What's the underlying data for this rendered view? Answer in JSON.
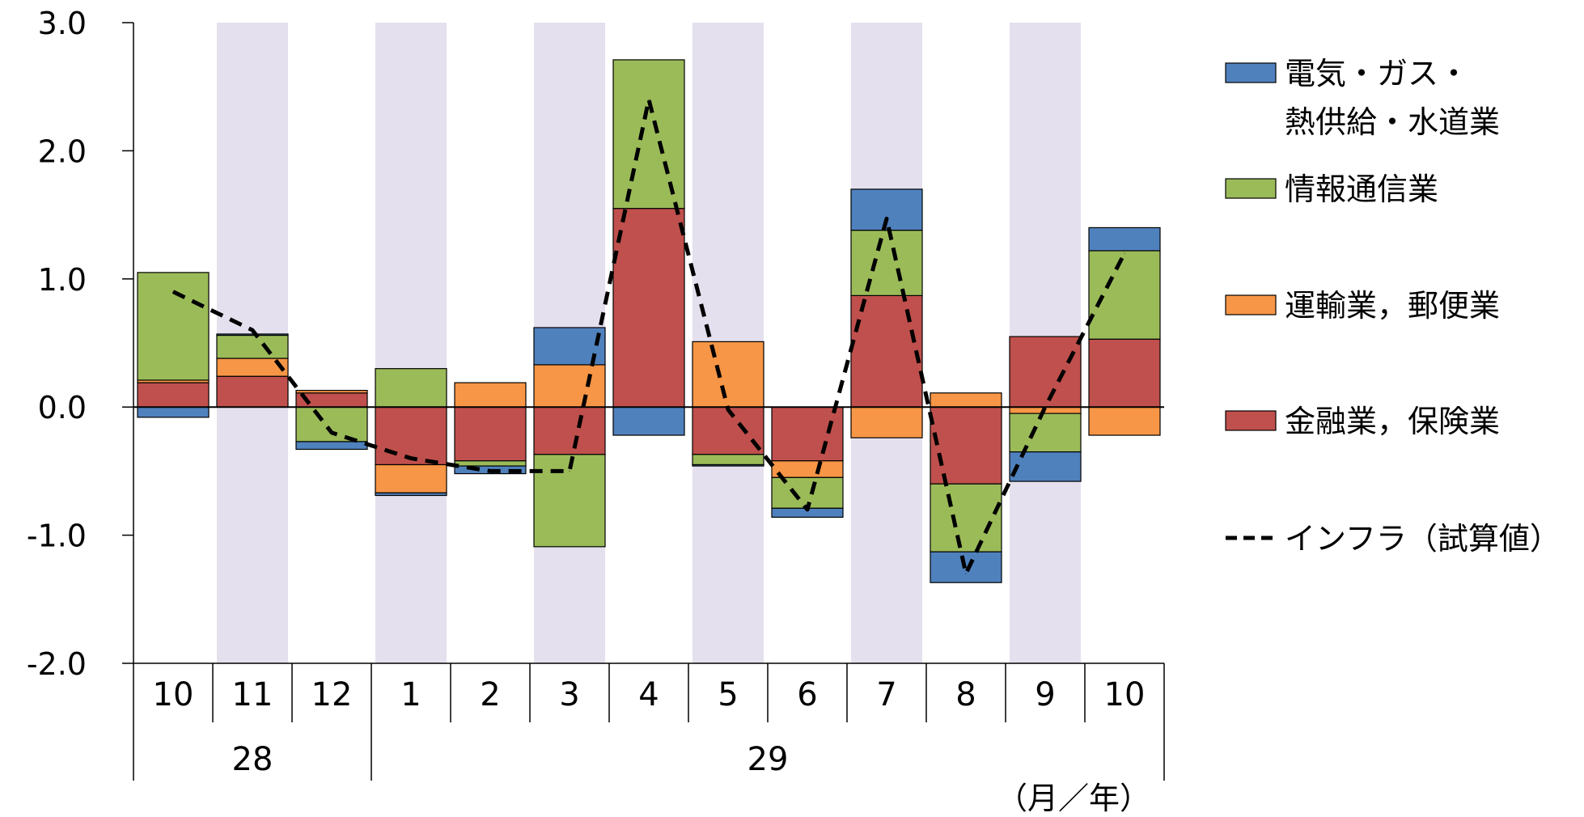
{
  "chart_data": {
    "type": "bar",
    "stacked": true,
    "categories": [
      "10",
      "11",
      "12",
      "1",
      "2",
      "3",
      "4",
      "5",
      "6",
      "7",
      "8",
      "9",
      "10"
    ],
    "years": [
      {
        "label": "28",
        "span": [
          0,
          2
        ]
      },
      {
        "label": "29",
        "span": [
          3,
          12
        ]
      }
    ],
    "x_unit_label": "（月／年）",
    "ylim": [
      -2.0,
      3.0
    ],
    "yticks": [
      "3.0",
      "2.0",
      "1.0",
      "0.0",
      "-1.0",
      "-2.0"
    ],
    "ytick_values": [
      3.0,
      2.0,
      1.0,
      0.0,
      -1.0,
      -2.0
    ],
    "shaded_categories": [
      1,
      3,
      5,
      7,
      9,
      11
    ],
    "colors": {
      "shade": "#e4e0ee",
      "finance": "#c0504d",
      "transport": "#f79646",
      "info": "#9bbb59",
      "electricity": "#4f81bd",
      "line": "#000000"
    },
    "series": [
      {
        "name": "金融業，保険業",
        "color_key": "finance",
        "values": [
          0.19,
          0.24,
          0.11,
          -0.45,
          -0.42,
          -0.37,
          1.55,
          -0.37,
          -0.42,
          0.87,
          -0.6,
          0.55,
          0.53
        ]
      },
      {
        "name": "運輸業，郵便業",
        "color_key": "transport",
        "values": [
          0.02,
          0.14,
          0.02,
          -0.22,
          0.19,
          0.33,
          0.0,
          0.51,
          -0.13,
          -0.24,
          0.11,
          -0.05,
          -0.22
        ]
      },
      {
        "name": "情報通信業",
        "color_key": "info",
        "values": [
          0.84,
          0.18,
          -0.27,
          0.3,
          -0.04,
          -0.72,
          1.16,
          -0.08,
          -0.24,
          0.51,
          -0.53,
          -0.3,
          0.69
        ]
      },
      {
        "name": "電気・ガス・熱供給・水道業",
        "color_key": "electricity",
        "values": [
          -0.08,
          0.01,
          -0.06,
          -0.02,
          -0.06,
          0.29,
          -0.22,
          -0.01,
          -0.07,
          0.32,
          -0.24,
          -0.23,
          0.18
        ]
      }
    ],
    "line": {
      "name": "インフラ（試算値）",
      "values": [
        0.9,
        0.6,
        -0.2,
        -0.4,
        -0.5,
        -0.5,
        2.4,
        -0.02,
        -0.8,
        1.47,
        -1.3,
        0.0,
        1.2
      ]
    },
    "legend": {
      "placement": "right",
      "items": [
        {
          "lines": [
            "電気・ガス・",
            "熱供給・水道業"
          ],
          "color_key": "electricity",
          "kind": "box"
        },
        {
          "lines": [
            "情報通信業"
          ],
          "color_key": "info",
          "kind": "box"
        },
        {
          "lines": [
            "運輸業，郵便業"
          ],
          "color_key": "transport",
          "kind": "box"
        },
        {
          "lines": [
            "金融業，保険業"
          ],
          "color_key": "finance",
          "kind": "box"
        },
        {
          "lines": [
            "インフラ（試算値）"
          ],
          "color_key": "line",
          "kind": "dash"
        }
      ]
    }
  }
}
